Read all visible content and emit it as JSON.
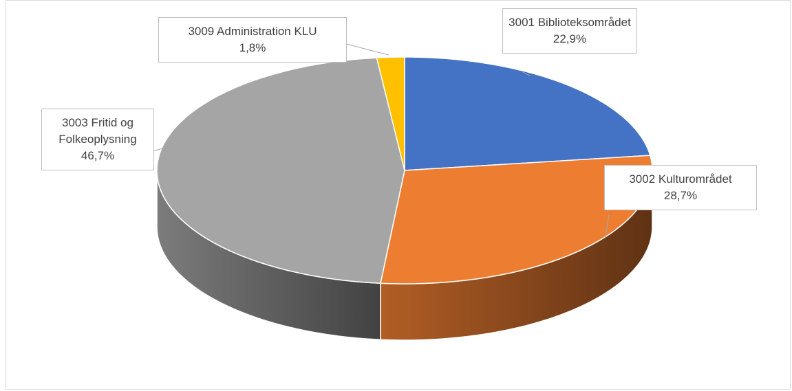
{
  "chart_data": {
    "type": "pie3d",
    "categories": [
      "3001 Biblioteksområdet",
      "3002 Kulturområdet",
      "3003 Fritid og Folkeoplysning",
      "3009 Administration KLU"
    ],
    "values": [
      22.9,
      28.7,
      46.7,
      1.8
    ],
    "value_labels": [
      "22,9%",
      "28,7%",
      "46,7%",
      "1,8%"
    ],
    "colors": [
      "#4472c4",
      "#ed7d31",
      "#a5a5a5",
      "#ffc000"
    ]
  }
}
